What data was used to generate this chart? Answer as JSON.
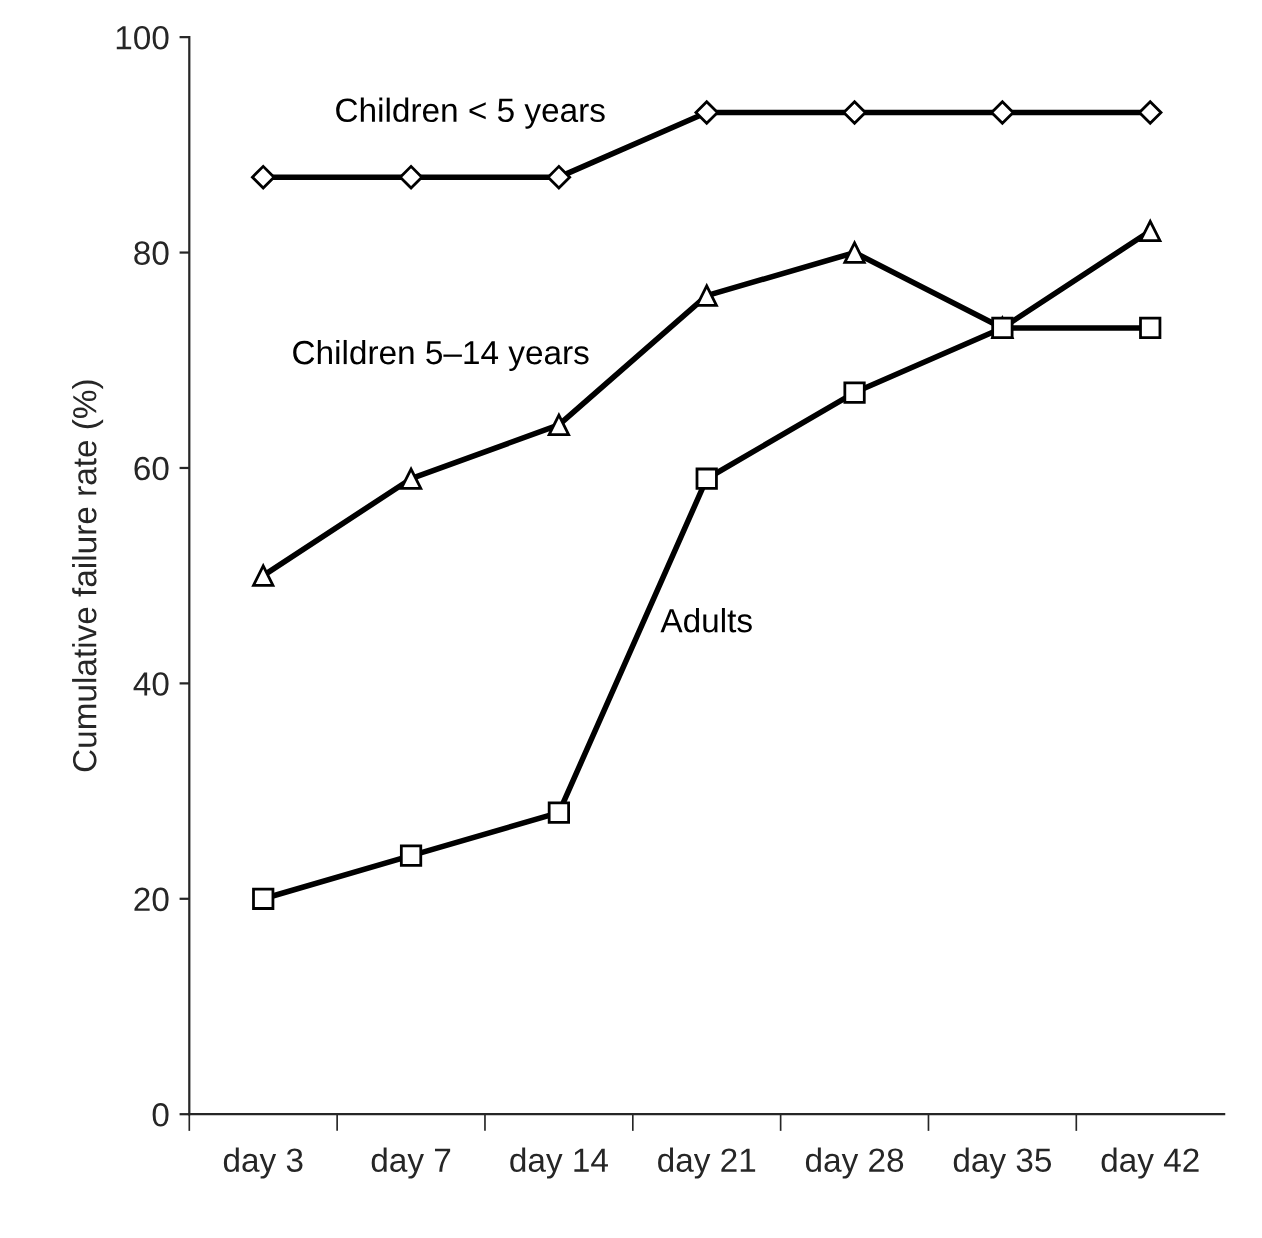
{
  "chart_data": {
    "type": "line",
    "ylabel": "Cumulative failure rate (%)",
    "categories": [
      "day 3",
      "day 7",
      "day 14",
      "day 21",
      "day 28",
      "day 35",
      "day 42"
    ],
    "series": [
      {
        "name": "Children < 5 years",
        "color": "#000000",
        "marker": "diamond",
        "values": [
          87,
          87,
          87,
          93,
          93,
          93,
          93
        ]
      },
      {
        "name": "Children 5–14 years",
        "color": "#000000",
        "marker": "triangle",
        "values": [
          50,
          59,
          64,
          76,
          80,
          73,
          82
        ]
      },
      {
        "name": "Adults",
        "color": "#000000",
        "marker": "square",
        "values": [
          20,
          24,
          28,
          59,
          67,
          73,
          73
        ]
      }
    ],
    "ylim": [
      0,
      100
    ],
    "yticks": [
      0,
      20,
      40,
      60,
      80,
      100
    ],
    "grid": false,
    "legend": false,
    "line_style": "solid"
  }
}
